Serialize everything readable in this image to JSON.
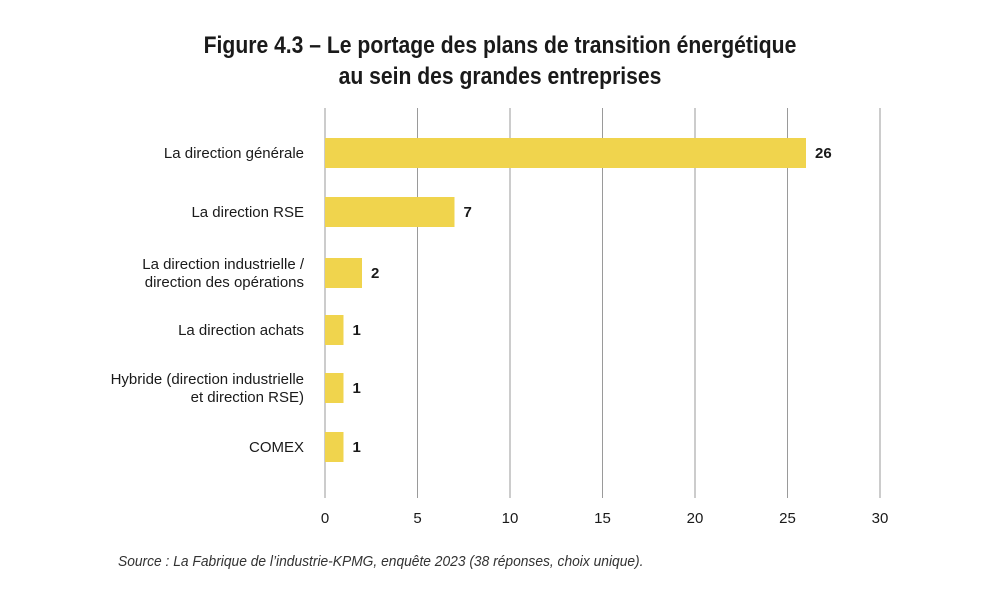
{
  "title_lines": [
    "Figure 4.3 – Le portage des plans de transition énergétique",
    "au sein des grandes entreprises"
  ],
  "source": "Source : La Fabrique de l’industrie-KPMG, enquête 2023 (38 réponses, choix unique).",
  "colors": {
    "bar": "#F0D44D",
    "grid": "#9a9a9a",
    "text": "#1a1a1a"
  },
  "chart_data": {
    "type": "bar",
    "orientation": "horizontal",
    "categories": [
      [
        "La direction générale"
      ],
      [
        "La direction RSE"
      ],
      [
        "La direction industrielle /",
        "direction des opérations"
      ],
      [
        "La direction achats"
      ],
      [
        "Hybride (direction industrielle",
        "et direction RSE)"
      ],
      [
        "COMEX"
      ]
    ],
    "values": [
      26,
      7,
      2,
      1,
      1,
      1
    ],
    "xticks": [
      0,
      5,
      10,
      15,
      20,
      25,
      30
    ],
    "xlim": [
      0,
      30
    ],
    "grid": "vertical",
    "data_labels": true
  }
}
